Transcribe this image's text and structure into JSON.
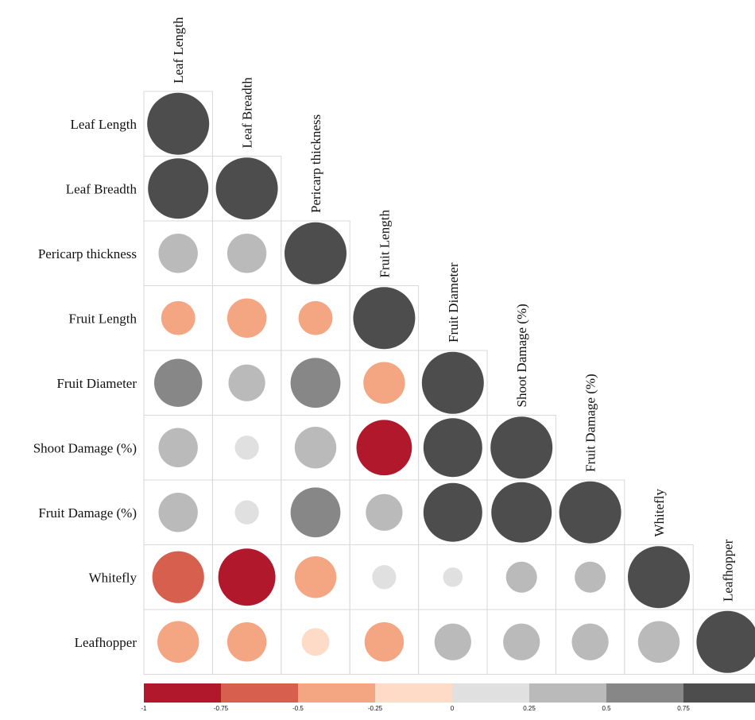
{
  "chart_data": {
    "type": "heatmap",
    "subtype": "correlation-circles-lower-triangle",
    "variables": [
      "Leaf Length",
      "Leaf Breadth",
      "Pericarp thickness",
      "Fruit Length",
      "Fruit Diameter",
      "Shoot Damage (%)",
      "Fruit Damage (%)",
      "Whitefly",
      "Leafhopper"
    ],
    "matrix": [
      [
        1.0
      ],
      [
        0.95,
        1.0
      ],
      [
        0.4,
        0.4,
        1.0
      ],
      [
        -0.3,
        -0.4,
        -0.3,
        1.0
      ],
      [
        0.6,
        0.35,
        0.65,
        -0.45,
        1.0
      ],
      [
        0.4,
        0.15,
        0.45,
        -0.8,
        0.9,
        1.0
      ],
      [
        0.4,
        0.15,
        0.65,
        0.35,
        0.9,
        0.95,
        1.0
      ],
      [
        -0.7,
        -0.85,
        -0.45,
        0.15,
        0.1,
        0.25,
        0.25,
        1.0
      ],
      [
        -0.45,
        -0.4,
        -0.2,
        -0.4,
        0.35,
        0.35,
        0.35,
        0.45,
        1.0
      ]
    ],
    "colorbar": {
      "ticks": [
        "-1",
        "-0.75",
        "-0.5",
        "-0.25",
        "0",
        "0.25",
        "0.5",
        "0.75"
      ],
      "range": [
        -1,
        1
      ],
      "colors": [
        "#b2182b",
        "#d6604d",
        "#f4a582",
        "#fddbc7",
        "#e0e0e0",
        "#bababa",
        "#878787",
        "#4d4d4d"
      ]
    }
  }
}
